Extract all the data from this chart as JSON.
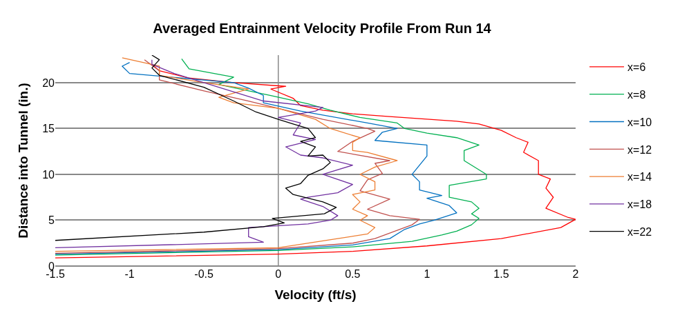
{
  "chart_data": {
    "type": "line",
    "title": "Averaged Entrainment Velocity Profile From Run 14",
    "xlabel": "Velocity (ft/s)",
    "ylabel": "Distance into Tunnel (in.)",
    "xlim": [
      -1.5,
      2
    ],
    "xticks": [
      -1.5,
      -1,
      -0.5,
      0,
      0.5,
      1,
      1.5,
      2
    ],
    "ylim": [
      0,
      23
    ],
    "yticks": [
      0,
      5,
      10,
      15,
      20
    ],
    "grid": "y",
    "ref_lines": [
      {
        "axis": "x",
        "value": 0,
        "color": "#888888"
      }
    ],
    "legend": "right",
    "marker": "none",
    "line_style": "solid",
    "series": [
      {
        "name": "x=6",
        "color": "#ff0000",
        "x": [
          -1.5,
          0,
          0.5,
          1.0,
          1.5,
          1.9,
          2.0,
          1.95,
          1.8,
          1.85,
          1.8,
          1.83,
          1.75,
          1.75,
          1.65,
          1.68,
          1.6,
          1.5,
          1.35,
          1.2,
          0.75,
          0.5,
          0.3,
          0.15,
          0.1,
          -0.05,
          0.05,
          -0.3,
          -0.6,
          -0.8,
          -0.85
        ],
        "values": [
          0.9,
          1.3,
          1.6,
          2.2,
          3.0,
          4.2,
          5.1,
          5.3,
          6.3,
          7.5,
          8.5,
          9.5,
          10,
          11.5,
          12.4,
          13.5,
          14,
          14.8,
          15.5,
          15.8,
          16.3,
          16.6,
          17.0,
          17.5,
          18.3,
          19.3,
          19.6,
          20.0,
          20.5,
          21.3,
          22.0
        ]
      },
      {
        "name": "x=8",
        "color": "#00b050",
        "x": [
          -1.5,
          0,
          0.5,
          0.9,
          1.1,
          1.2,
          1.3,
          1.35,
          1.3,
          1.35,
          1.3,
          1.15,
          1.15,
          1.4,
          1.4,
          1.25,
          1.25,
          1.35,
          1.2,
          1.0,
          0.85,
          0.8,
          0.55,
          0.35,
          0.2,
          -0.05,
          -0.4,
          -0.3,
          -0.6,
          -0.65
        ],
        "values": [
          1.2,
          1.7,
          2.1,
          2.7,
          3.4,
          3.8,
          4.5,
          5.2,
          5.7,
          6.3,
          7,
          7.5,
          8.8,
          9.5,
          10.0,
          11.5,
          12.6,
          13.2,
          14.0,
          14.5,
          15.0,
          15.6,
          16.2,
          17.0,
          17.7,
          18.6,
          19.8,
          20.6,
          21.5,
          22.6
        ]
      },
      {
        "name": "x=10",
        "color": "#0070c0",
        "x": [
          -1.5,
          0,
          0.5,
          0.75,
          0.85,
          0.95,
          1.05,
          1.2,
          1.15,
          1.0,
          1.1,
          0.95,
          0.95,
          0.9,
          0.95,
          1.0,
          1.0,
          0.65,
          0.7,
          0.8,
          0.6,
          0.15,
          -0.1,
          -0.1,
          -0.2,
          -0.3,
          -1.0,
          -1.05,
          -1.0
        ],
        "values": [
          1.3,
          1.8,
          2.3,
          3.0,
          4.0,
          4.6,
          5.0,
          5.8,
          6.6,
          7.4,
          7.7,
          8.3,
          9.2,
          10.0,
          11.0,
          12.0,
          13.2,
          13.7,
          14.6,
          15.0,
          15.6,
          16.9,
          17.8,
          18.6,
          19.4,
          20.0,
          21.0,
          21.8,
          22.2
        ]
      },
      {
        "name": "x=12",
        "color": "#c0504d",
        "x": [
          -1.5,
          0,
          0.5,
          0.65,
          0.9,
          0.95,
          0.75,
          0.6,
          0.75,
          0.55,
          0.6,
          0.7,
          0.65,
          0.75,
          0.4,
          0.5,
          0.65,
          0.6,
          0.3,
          0.05,
          -0.2,
          -0.5,
          -0.8,
          -0.8,
          -0.9
        ],
        "values": [
          1.4,
          1.9,
          2.5,
          3.0,
          4.5,
          5.1,
          5.5,
          6.2,
          7.3,
          8.2,
          9.4,
          10.1,
          11.2,
          11.5,
          12.5,
          13.6,
          14.7,
          15.0,
          16.0,
          17.0,
          18.0,
          19.1,
          20.3,
          21.3,
          22.5
        ]
      },
      {
        "name": "x=14",
        "color": "#ed7d31",
        "x": [
          -1.5,
          0,
          0.4,
          0.6,
          0.65,
          0.55,
          0.6,
          0.5,
          0.55,
          0.5,
          0.65,
          0.65,
          0.55,
          0.65,
          0.8,
          0.6,
          0.5,
          0.5,
          0.55,
          0.35,
          0.25,
          0.0,
          -0.3,
          -0.4,
          -0.2,
          -0.5,
          -0.8,
          -0.8,
          -1.05
        ],
        "values": [
          1.6,
          2.0,
          3.0,
          3.5,
          4.2,
          5.0,
          5.5,
          6.2,
          7.0,
          7.8,
          8.3,
          9.2,
          10.0,
          10.8,
          11.5,
          12.4,
          12.6,
          13.5,
          14.0,
          15.0,
          16.0,
          17.2,
          17.8,
          18.4,
          19.3,
          20.0,
          20.8,
          21.8,
          22.7
        ]
      },
      {
        "name": "x=18",
        "color": "#7030a0",
        "x": [
          -1.5,
          -0.1,
          -0.2,
          -0.2,
          0.2,
          0.35,
          0.4,
          0.3,
          0.15,
          0.2,
          0.4,
          0.5,
          0.3,
          0.5,
          0.3,
          0.15,
          0.05,
          0.25,
          0.1,
          0.15,
          0.0,
          0.25,
          0.3,
          -0.1,
          -0.4,
          -0.7,
          -0.85,
          -0.85
        ],
        "values": [
          2.0,
          2.6,
          3.2,
          4.2,
          4.6,
          5.0,
          5.5,
          6.5,
          7.3,
          7.5,
          8.0,
          8.9,
          10.0,
          11.0,
          11.8,
          12.1,
          13.0,
          13.8,
          14.3,
          15.6,
          16.2,
          16.9,
          17.3,
          18.0,
          19.5,
          21.0,
          22.0,
          22.5
        ]
      },
      {
        "name": "x=22",
        "color": "#000000",
        "x": [
          -1.5,
          -0.5,
          -0.1,
          0.04,
          -0.04,
          0.31,
          0.39,
          0.3,
          0.1,
          0.05,
          0.15,
          0.2,
          0.3,
          0.35,
          0.3,
          0.2,
          0.25,
          0.15,
          0.25,
          0.2,
          0.1,
          0.0,
          -0.15,
          -0.3,
          -0.5,
          -0.8,
          -0.85,
          -0.8,
          -0.85
        ],
        "values": [
          2.8,
          3.7,
          4.3,
          4.7,
          5.2,
          5.7,
          6.4,
          7.0,
          7.8,
          8.5,
          9.0,
          9.9,
          10.6,
          11.3,
          12.1,
          12.0,
          13.0,
          13.6,
          14.0,
          15.0,
          15.5,
          16.0,
          16.8,
          18.0,
          19.5,
          20.8,
          21.6,
          22.5,
          23.0
        ]
      }
    ]
  }
}
